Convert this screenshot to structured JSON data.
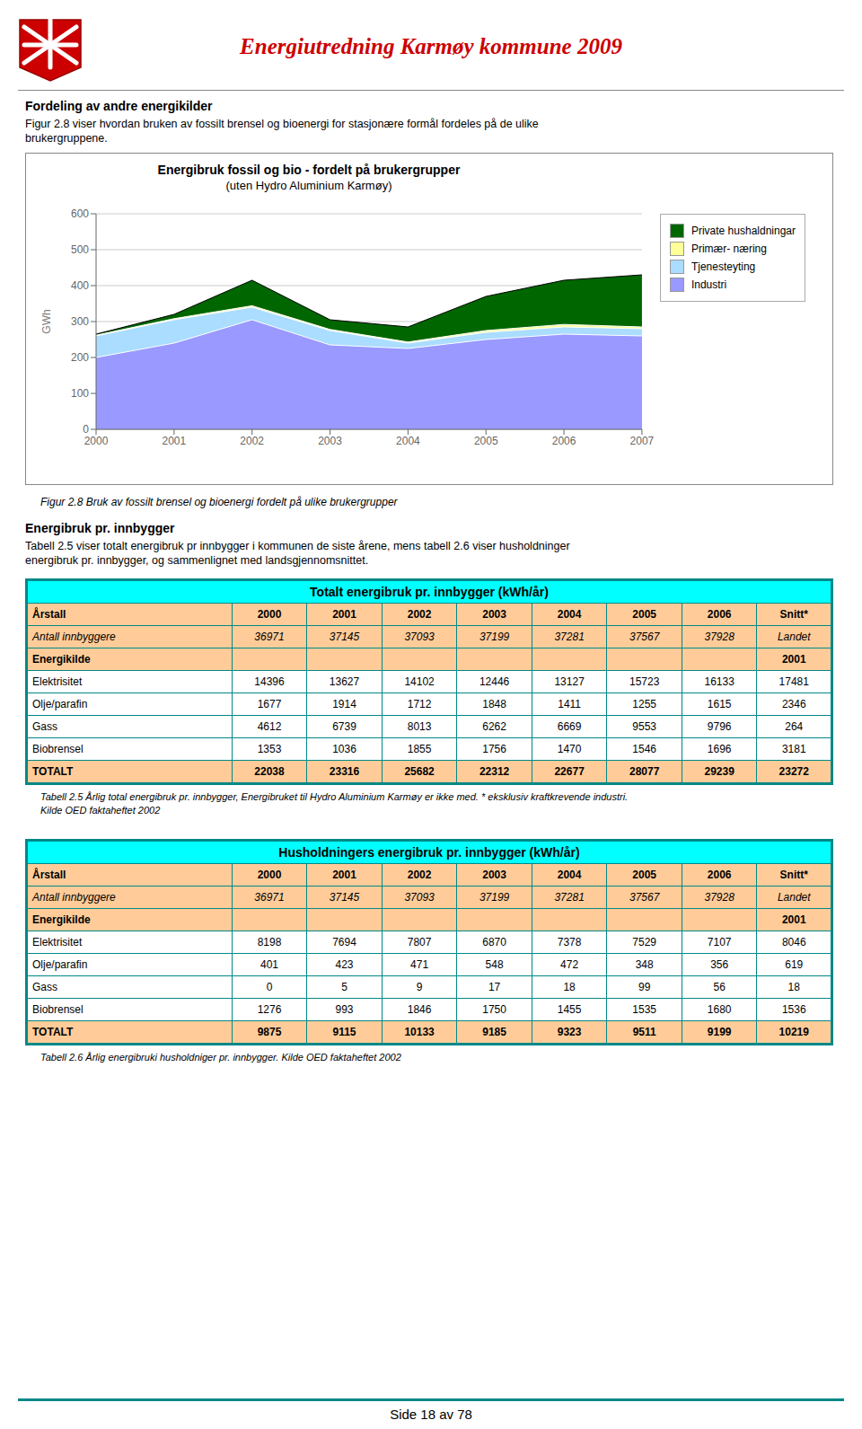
{
  "page_title": "Energiutredning Karmøy kommune 2009",
  "section1": {
    "title": "Fordeling av andre energikilder",
    "lines": [
      "Figur 2.8 viser hvordan bruken av fossilt brensel og bioenergi for stasjonære formål fordeles på de ulike",
      "brukergruppene."
    ]
  },
  "chart_data": {
    "type": "area",
    "title": "Energibruk fossil og bio -  fordelt på brukergrupper",
    "subtitle": "(uten Hydro Aluminium Karmøy)",
    "y_label": "GWh",
    "x": [
      2000,
      2001,
      2002,
      2003,
      2004,
      2005,
      2006,
      2007
    ],
    "xlim": [
      2000,
      2007
    ],
    "xticks": [
      2000,
      2001,
      2002,
      2003,
      2004,
      2005,
      2006,
      2007
    ],
    "ylim": [
      0,
      600
    ],
    "yticks": [
      0,
      100,
      200,
      300,
      400,
      500,
      600
    ],
    "grid": "y",
    "legend": "right",
    "stacked": false,
    "series": [
      {
        "name": "Private hushaldningar",
        "color": "#006600",
        "values": [
          265,
          320,
          415,
          305,
          285,
          370,
          415,
          430
        ]
      },
      {
        "name": "Primær- næring",
        "color": "#FFFF99",
        "values": [
          262,
          308,
          344,
          278,
          243,
          275,
          292,
          285
        ]
      },
      {
        "name": "Tjenesteyting",
        "color": "#AADDFF",
        "values": [
          260,
          305,
          340,
          275,
          240,
          270,
          285,
          280
        ]
      },
      {
        "name": "Industri",
        "color": "#9999FF",
        "values": [
          200,
          240,
          305,
          235,
          225,
          250,
          265,
          260
        ]
      }
    ]
  },
  "figure_caption": "Figur 2.8  Bruk av fossilt brensel og bioenergi fordelt på ulike brukergrupper",
  "section2": {
    "title": "Energibruk pr. innbygger",
    "lines": [
      "Tabell 2.5 viser totalt energibruk pr innbygger i kommunen de siste årene, mens tabell 2.6 viser husholdninger",
      "energibruk pr. innbygger, og sammenlignet med landsgjennomsnittet."
    ]
  },
  "tables": [
    {
      "title": "Totalt energibruk pr. innbygger (kWh/år)",
      "rows": [
        [
          "Årstall",
          "2000",
          "2001",
          "2002",
          "2003",
          "2004",
          "2005",
          "2006",
          "Snitt*"
        ],
        [
          "Antall innbyggere",
          "36971",
          "37145",
          "37093",
          "37199",
          "37281",
          "37567",
          "37928",
          "Landet"
        ],
        [
          "Energikilde",
          "",
          "",
          "",
          "",
          "",
          "",
          "",
          "2001"
        ],
        [
          "Elektrisitet",
          "14396",
          "13627",
          "14102",
          "12446",
          "13127",
          "15723",
          "16133",
          "17481"
        ],
        [
          "Olje/parafin",
          "1677",
          "1914",
          "1712",
          "1848",
          "1411",
          "1255",
          "1615",
          "2346"
        ],
        [
          "Gass",
          "4612",
          "6739",
          "8013",
          "6262",
          "6669",
          "9553",
          "9796",
          "264"
        ],
        [
          "Biobrensel",
          "1353",
          "1036",
          "1855",
          "1756",
          "1470",
          "1546",
          "1696",
          "3181"
        ],
        [
          "TOTALT",
          "22038",
          "23316",
          "25682",
          "22312",
          "22677",
          "28077",
          "29239",
          "23272"
        ]
      ],
      "captions": [
        "Tabell 2.5 Årlig  total energibruk pr. innbygger, Energibruket til Hydro Aluminium Karmøy er ikke med. * eksklusiv kraftkrevende industri.",
        "Kilde OED faktaheftet 2002"
      ]
    },
    {
      "title": "Husholdningers energibruk pr. innbygger (kWh/år)",
      "rows": [
        [
          "Årstall",
          "2000",
          "2001",
          "2002",
          "2003",
          "2004",
          "2005",
          "2006",
          "Snitt*"
        ],
        [
          "Antall innbyggere",
          "36971",
          "37145",
          "37093",
          "37199",
          "37281",
          "37567",
          "37928",
          "Landet"
        ],
        [
          "Energikilde",
          "",
          "",
          "",
          "",
          "",
          "",
          "",
          "2001"
        ],
        [
          "Elektrisitet",
          "8198",
          "7694",
          "7807",
          "6870",
          "7378",
          "7529",
          "7107",
          "8046"
        ],
        [
          "Olje/parafin",
          "401",
          "423",
          "471",
          "548",
          "472",
          "348",
          "356",
          "619"
        ],
        [
          "Gass",
          "0",
          "5",
          "9",
          "17",
          "18",
          "99",
          "56",
          "18"
        ],
        [
          "Biobrensel",
          "1276",
          "993",
          "1846",
          "1750",
          "1455",
          "1535",
          "1680",
          "1536"
        ],
        [
          "TOTALT",
          "9875",
          "9115",
          "10133",
          "9185",
          "9323",
          "9511",
          "9199",
          "10219"
        ]
      ],
      "captions": [
        "Tabell 2.6  Årlig  energibruki husholdniger pr. innbygger. Kilde OED faktaheftet 2002"
      ]
    }
  ],
  "page_footer": "Side 18 av 78"
}
